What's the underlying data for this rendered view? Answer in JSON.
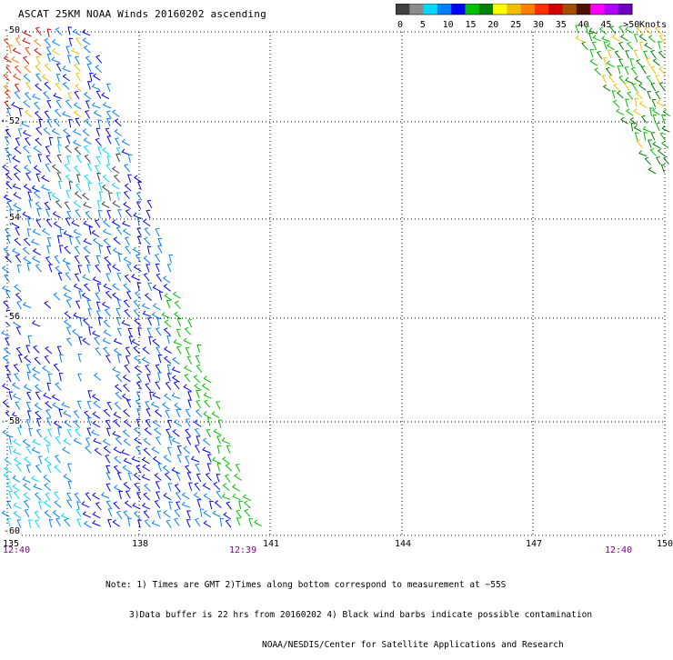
{
  "title": "ASCAT 25KM NOAA Winds 20160202 ascending",
  "legend": {
    "labels": [
      "0",
      "5",
      "10",
      "15",
      "20",
      "25",
      "30",
      "35",
      "40",
      "45",
      ">50"
    ],
    "unit": "Knots",
    "colors": [
      "#404040",
      "#8c8c8c",
      "#00d8ff",
      "#0080ff",
      "#0000ff",
      "#00c000",
      "#008000",
      "#ffff00",
      "#f0c000",
      "#ff8000",
      "#ff3000",
      "#d00000",
      "#a05000",
      "#501000",
      "#ff00ff",
      "#b000ff",
      "#7000c0"
    ]
  },
  "map": {
    "x_ticks": [
      "135",
      "138",
      "141",
      "144",
      "147",
      "150"
    ],
    "y_ticks": [
      "-50",
      "-52",
      "-54",
      "-56",
      "-58",
      "-60"
    ],
    "lon_range": [
      135,
      150
    ],
    "lat_range": [
      -50,
      -60
    ],
    "grid": "dotted"
  },
  "times": [
    {
      "label": "12:40"
    },
    {
      "label": "12:39"
    },
    {
      "label": "12:40"
    }
  ],
  "notes": {
    "line1": "Note: 1) Times are GMT 2)Times along bottom correspond to measurement at ~55S",
    "line2": "3)Data buffer is 22 hrs from 20160202 4) Black wind barbs indicate possible contamination",
    "line3": "NOAA/NESDIS/Center for Satellite Applications and Research"
  }
}
